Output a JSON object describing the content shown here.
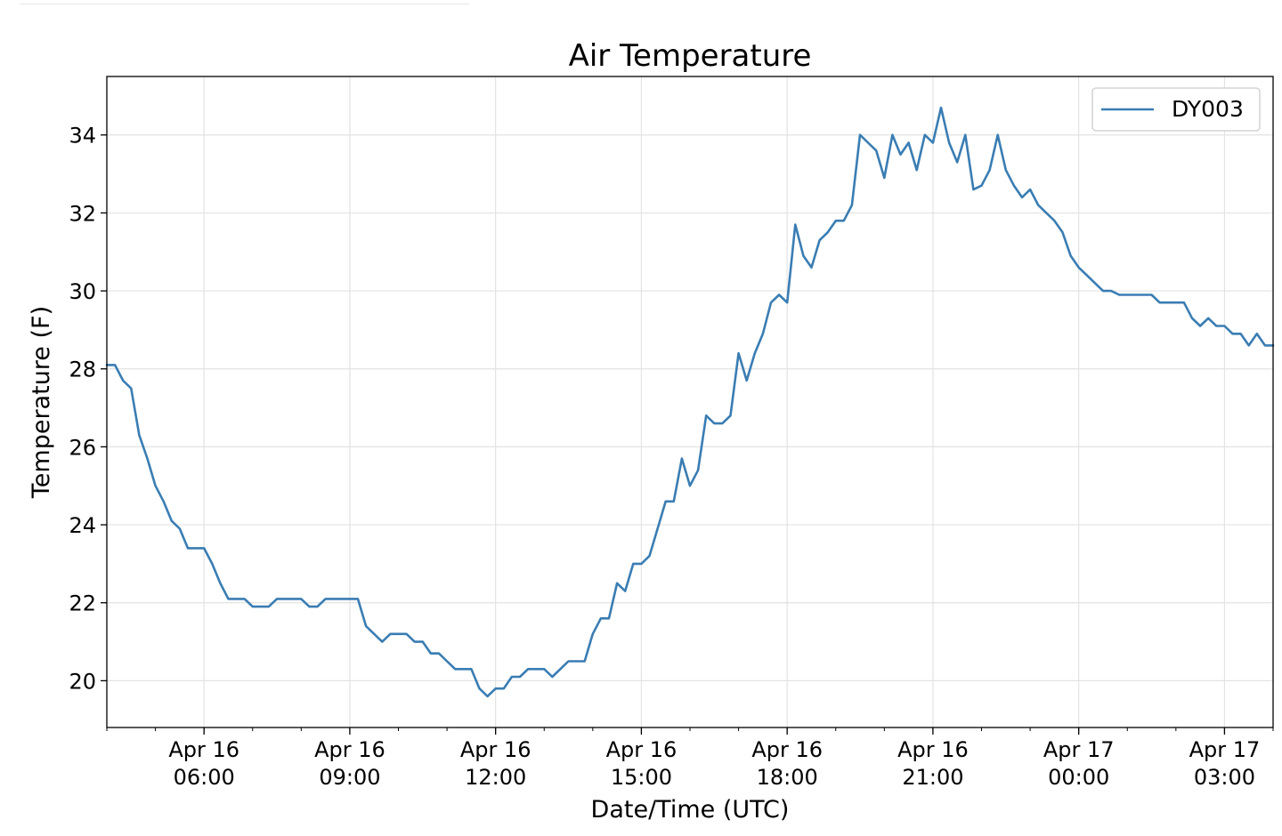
{
  "chart_data": {
    "type": "line",
    "title": "Air Temperature",
    "xlabel": "Date/Time (UTC)",
    "ylabel": "Temperature (F)",
    "xlim": [
      "2021-04-16T04:00",
      "2021-04-17T04:00"
    ],
    "ylim": [
      18.8,
      35.5
    ],
    "grid": true,
    "legend_position": "top-right",
    "y_ticks": [
      20,
      22,
      24,
      26,
      28,
      30,
      32,
      34
    ],
    "y_tick_labels": [
      "20",
      "22",
      "24",
      "26",
      "28",
      "30",
      "32",
      "34"
    ],
    "x_ticks": [
      "2021-04-16T06:00",
      "2021-04-16T09:00",
      "2021-04-16T12:00",
      "2021-04-16T15:00",
      "2021-04-16T18:00",
      "2021-04-16T21:00",
      "2021-04-17T00:00",
      "2021-04-17T03:00"
    ],
    "x_tick_labels": [
      [
        "Apr 16",
        "06:00"
      ],
      [
        "Apr 16",
        "09:00"
      ],
      [
        "Apr 16",
        "12:00"
      ],
      [
        "Apr 16",
        "15:00"
      ],
      [
        "Apr 16",
        "18:00"
      ],
      [
        "Apr 16",
        "21:00"
      ],
      [
        "Apr 17",
        "00:00"
      ],
      [
        "Apr 17",
        "03:00"
      ]
    ],
    "series": [
      {
        "name": "DY003",
        "color": "#3a7db3",
        "x": [
          "2021-04-16T04:00",
          "2021-04-16T04:10",
          "2021-04-16T04:20",
          "2021-04-16T04:30",
          "2021-04-16T04:40",
          "2021-04-16T04:50",
          "2021-04-16T05:00",
          "2021-04-16T05:10",
          "2021-04-16T05:20",
          "2021-04-16T05:30",
          "2021-04-16T05:40",
          "2021-04-16T05:50",
          "2021-04-16T06:00",
          "2021-04-16T06:10",
          "2021-04-16T06:20",
          "2021-04-16T06:30",
          "2021-04-16T06:40",
          "2021-04-16T06:50",
          "2021-04-16T07:00",
          "2021-04-16T07:10",
          "2021-04-16T07:20",
          "2021-04-16T07:30",
          "2021-04-16T07:40",
          "2021-04-16T07:50",
          "2021-04-16T08:00",
          "2021-04-16T08:10",
          "2021-04-16T08:20",
          "2021-04-16T08:30",
          "2021-04-16T08:40",
          "2021-04-16T08:50",
          "2021-04-16T09:00",
          "2021-04-16T09:10",
          "2021-04-16T09:20",
          "2021-04-16T09:30",
          "2021-04-16T09:40",
          "2021-04-16T09:50",
          "2021-04-16T10:00",
          "2021-04-16T10:10",
          "2021-04-16T10:20",
          "2021-04-16T10:30",
          "2021-04-16T10:40",
          "2021-04-16T10:50",
          "2021-04-16T11:00",
          "2021-04-16T11:10",
          "2021-04-16T11:20",
          "2021-04-16T11:30",
          "2021-04-16T11:40",
          "2021-04-16T11:50",
          "2021-04-16T12:00",
          "2021-04-16T12:10",
          "2021-04-16T12:20",
          "2021-04-16T12:30",
          "2021-04-16T12:40",
          "2021-04-16T12:50",
          "2021-04-16T13:00",
          "2021-04-16T13:10",
          "2021-04-16T13:20",
          "2021-04-16T13:30",
          "2021-04-16T13:40",
          "2021-04-16T13:50",
          "2021-04-16T14:00",
          "2021-04-16T14:10",
          "2021-04-16T14:20",
          "2021-04-16T14:30",
          "2021-04-16T14:40",
          "2021-04-16T14:50",
          "2021-04-16T15:00",
          "2021-04-16T15:10",
          "2021-04-16T15:20",
          "2021-04-16T15:30",
          "2021-04-16T15:40",
          "2021-04-16T15:50",
          "2021-04-16T16:00",
          "2021-04-16T16:10",
          "2021-04-16T16:20",
          "2021-04-16T16:30",
          "2021-04-16T16:40",
          "2021-04-16T16:50",
          "2021-04-16T17:00",
          "2021-04-16T17:10",
          "2021-04-16T17:20",
          "2021-04-16T17:30",
          "2021-04-16T17:40",
          "2021-04-16T17:50",
          "2021-04-16T18:00",
          "2021-04-16T18:10",
          "2021-04-16T18:20",
          "2021-04-16T18:30",
          "2021-04-16T18:40",
          "2021-04-16T18:50",
          "2021-04-16T19:00",
          "2021-04-16T19:10",
          "2021-04-16T19:20",
          "2021-04-16T19:30",
          "2021-04-16T19:40",
          "2021-04-16T19:50",
          "2021-04-16T20:00",
          "2021-04-16T20:10",
          "2021-04-16T20:20",
          "2021-04-16T20:30",
          "2021-04-16T20:40",
          "2021-04-16T20:50",
          "2021-04-16T21:00",
          "2021-04-16T21:10",
          "2021-04-16T21:20",
          "2021-04-16T21:30",
          "2021-04-16T21:40",
          "2021-04-16T21:50",
          "2021-04-16T22:00",
          "2021-04-16T22:10",
          "2021-04-16T22:20",
          "2021-04-16T22:30",
          "2021-04-16T22:40",
          "2021-04-16T22:50",
          "2021-04-16T23:00",
          "2021-04-16T23:10",
          "2021-04-16T23:20",
          "2021-04-16T23:30",
          "2021-04-16T23:40",
          "2021-04-16T23:50",
          "2021-04-17T00:00",
          "2021-04-17T00:10",
          "2021-04-17T00:20",
          "2021-04-17T00:30",
          "2021-04-17T00:40",
          "2021-04-17T00:50",
          "2021-04-17T01:00",
          "2021-04-17T01:10",
          "2021-04-17T01:20",
          "2021-04-17T01:30",
          "2021-04-17T01:40",
          "2021-04-17T01:50",
          "2021-04-17T02:00",
          "2021-04-17T02:10",
          "2021-04-17T02:20",
          "2021-04-17T02:30",
          "2021-04-17T02:40",
          "2021-04-17T02:50",
          "2021-04-17T03:00",
          "2021-04-17T03:10",
          "2021-04-17T03:20",
          "2021-04-17T03:30",
          "2021-04-17T03:40",
          "2021-04-17T03:50",
          "2021-04-17T04:00"
        ],
        "values": [
          28.1,
          28.1,
          27.7,
          27.5,
          26.3,
          25.7,
          25.0,
          24.6,
          24.1,
          23.9,
          23.4,
          23.4,
          23.4,
          23.0,
          22.5,
          22.1,
          22.1,
          22.1,
          21.9,
          21.9,
          21.9,
          22.1,
          22.1,
          22.1,
          22.1,
          21.9,
          21.9,
          22.1,
          22.1,
          22.1,
          22.1,
          22.1,
          21.4,
          21.2,
          21.0,
          21.2,
          21.2,
          21.2,
          21.0,
          21.0,
          20.7,
          20.7,
          20.5,
          20.3,
          20.3,
          20.3,
          19.8,
          19.6,
          19.8,
          19.8,
          20.1,
          20.1,
          20.3,
          20.3,
          20.3,
          20.1,
          20.3,
          20.5,
          20.5,
          20.5,
          21.2,
          21.6,
          21.6,
          22.5,
          22.3,
          23.0,
          23.0,
          23.2,
          23.9,
          24.6,
          24.6,
          25.7,
          25.0,
          25.4,
          26.8,
          26.6,
          26.6,
          26.8,
          28.4,
          27.7,
          28.4,
          28.9,
          29.7,
          29.9,
          29.7,
          31.7,
          30.9,
          30.6,
          31.3,
          31.5,
          31.8,
          31.8,
          32.2,
          34.0,
          33.8,
          33.6,
          32.9,
          34.0,
          33.5,
          33.8,
          33.1,
          34.0,
          33.8,
          34.7,
          33.8,
          33.3,
          34.0,
          32.6,
          32.7,
          33.1,
          34.0,
          33.1,
          32.7,
          32.4,
          32.6,
          32.2,
          32.0,
          31.8,
          31.5,
          30.9,
          30.6,
          30.4,
          30.2,
          30.0,
          30.0,
          29.9,
          29.9,
          29.9,
          29.9,
          29.9,
          29.7,
          29.7,
          29.7,
          29.7,
          29.3,
          29.1,
          29.3,
          29.1,
          29.1,
          28.9,
          28.9,
          28.6,
          28.9,
          28.6,
          28.6
        ]
      }
    ]
  }
}
